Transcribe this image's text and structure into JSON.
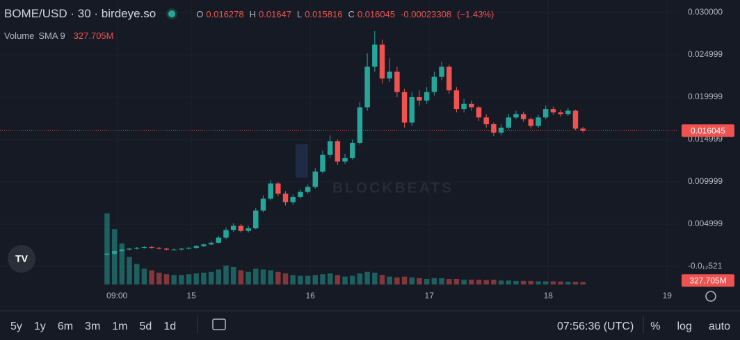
{
  "chart_data": {
    "type": "candlestick",
    "title": "BOME/USD · 30 · birdeye.so",
    "ohlc_labels": [
      "O",
      "H",
      "L",
      "C"
    ],
    "change": -0.00023308,
    "change_pct": -1.43,
    "change_pct_label": "(−1.43%)",
    "volume_name": "Volume",
    "volume_sma_label": "SMA 9",
    "volume_label": "327.705M",
    "watermark": "BLOCKBEATS",
    "up_color": "#26a69a",
    "down_color": "#ef5350",
    "grid": true,
    "x": [
      7,
      8.5,
      10,
      11.5,
      13,
      14.5,
      16,
      17.5,
      19,
      20.5,
      22,
      23.5,
      25,
      26.5,
      28,
      29.5,
      31,
      32.5,
      34,
      35.5,
      37,
      38.5,
      40,
      41.5,
      43,
      44.5,
      46,
      47.5,
      49,
      50.5,
      52,
      53.5,
      55,
      56.5,
      58,
      59.5,
      61,
      62.5,
      64,
      65.5,
      67,
      68.5,
      70,
      71.5,
      73,
      74.5,
      76,
      77.5,
      79,
      80.5,
      82,
      83.5,
      85,
      86.5,
      88,
      89.5,
      91,
      92.5,
      94,
      95.5,
      97,
      98.5,
      100,
      101.5,
      103
    ],
    "open": [
      0.0014,
      0.0015,
      0.0018,
      0.002,
      0.0021,
      0.0022,
      0.0023,
      0.0022,
      0.0021,
      0.002,
      0.002,
      0.0021,
      0.0022,
      0.0024,
      0.0026,
      0.0028,
      0.0034,
      0.0043,
      0.0048,
      0.0042,
      0.0045,
      0.0066,
      0.008,
      0.0098,
      0.0086,
      0.0076,
      0.0082,
      0.0088,
      0.0094,
      0.0112,
      0.0132,
      0.0148,
      0.0124,
      0.0128,
      0.0146,
      0.0188,
      0.0236,
      0.0262,
      0.0222,
      0.023,
      0.0206,
      0.017,
      0.02,
      0.0196,
      0.0206,
      0.0224,
      0.0236,
      0.0208,
      0.0186,
      0.0192,
      0.0188,
      0.0176,
      0.0168,
      0.0158,
      0.0164,
      0.0176,
      0.018,
      0.0174,
      0.0166,
      0.0176,
      0.0186,
      0.0182,
      0.018,
      0.0184,
      0.016278
    ],
    "high": [
      0.0016,
      0.0019,
      0.0021,
      0.0022,
      0.0023,
      0.0024,
      0.0024,
      0.0023,
      0.0022,
      0.0021,
      0.0022,
      0.0023,
      0.0025,
      0.0027,
      0.003,
      0.0036,
      0.0046,
      0.0051,
      0.005,
      0.0048,
      0.0069,
      0.0084,
      0.0102,
      0.01,
      0.0089,
      0.0085,
      0.0091,
      0.0097,
      0.0116,
      0.0137,
      0.0155,
      0.015,
      0.0133,
      0.015,
      0.0194,
      0.0252,
      0.0278,
      0.0268,
      0.0246,
      0.0236,
      0.021,
      0.0206,
      0.0208,
      0.0212,
      0.023,
      0.0242,
      0.0238,
      0.0212,
      0.0198,
      0.0196,
      0.019,
      0.018,
      0.017,
      0.0168,
      0.018,
      0.0184,
      0.0183,
      0.0176,
      0.0179,
      0.019,
      0.0189,
      0.0185,
      0.0187,
      0.0185,
      0.01647
    ],
    "low": [
      0.0013,
      0.0014,
      0.0017,
      0.0019,
      0.002,
      0.0021,
      0.0021,
      0.002,
      0.0019,
      0.0019,
      0.0019,
      0.002,
      0.0021,
      0.0023,
      0.0025,
      0.0027,
      0.0032,
      0.0041,
      0.004,
      0.004,
      0.0044,
      0.0064,
      0.0078,
      0.0083,
      0.0072,
      0.0073,
      0.008,
      0.0086,
      0.0092,
      0.011,
      0.0128,
      0.012,
      0.0121,
      0.0126,
      0.0144,
      0.0184,
      0.023,
      0.0216,
      0.0218,
      0.02,
      0.0164,
      0.0166,
      0.019,
      0.0192,
      0.0202,
      0.022,
      0.0204,
      0.0182,
      0.0182,
      0.0184,
      0.0172,
      0.0164,
      0.0154,
      0.0155,
      0.0162,
      0.0174,
      0.0171,
      0.0163,
      0.0164,
      0.0174,
      0.0179,
      0.0177,
      0.0178,
      0.0161,
      0.015816
    ],
    "close": [
      0.0015,
      0.0018,
      0.002,
      0.0021,
      0.0022,
      0.0023,
      0.0022,
      0.0021,
      0.002,
      0.002,
      0.0021,
      0.0022,
      0.0024,
      0.0026,
      0.0028,
      0.0034,
      0.0043,
      0.0048,
      0.0042,
      0.0045,
      0.0066,
      0.008,
      0.0098,
      0.0086,
      0.0076,
      0.0082,
      0.0088,
      0.0094,
      0.0112,
      0.0132,
      0.0148,
      0.0124,
      0.0128,
      0.0146,
      0.0188,
      0.0236,
      0.0262,
      0.0222,
      0.023,
      0.0206,
      0.017,
      0.02,
      0.0196,
      0.0206,
      0.0224,
      0.0236,
      0.0208,
      0.0186,
      0.0192,
      0.0188,
      0.0176,
      0.0168,
      0.0158,
      0.0164,
      0.0176,
      0.018,
      0.0174,
      0.0166,
      0.0176,
      0.0186,
      0.0182,
      0.018,
      0.0184,
      0.016278,
      0.016045
    ],
    "volume": [
      9000,
      7000,
      5200,
      3500,
      2600,
      2000,
      1800,
      1500,
      1300,
      1200,
      1200,
      1300,
      1400,
      1500,
      1600,
      1900,
      2400,
      2200,
      1800,
      1600,
      2000,
      1900,
      1800,
      1600,
      1400,
      1200,
      1100,
      1100,
      1200,
      1300,
      1400,
      1200,
      1000,
      1100,
      1400,
      1600,
      1500,
      1200,
      1000,
      900,
      1000,
      900,
      800,
      700,
      800,
      800,
      700,
      700,
      600,
      600,
      600,
      550,
      600,
      500,
      500,
      450,
      450,
      450,
      400,
      400,
      400,
      380,
      360,
      350,
      327.705
    ],
    "vlim": [
      0,
      36000
    ],
    "xlim": [
      -14.6,
      122.2
    ],
    "xticks": [
      {
        "value": 9,
        "label": "09:00"
      },
      {
        "value": 24,
        "label": "15"
      },
      {
        "value": 48,
        "label": "16"
      },
      {
        "value": 72,
        "label": "17"
      },
      {
        "value": 96,
        "label": "18"
      },
      {
        "value": 120,
        "label": "19"
      }
    ],
    "ylim": [
      -0.00213,
      0.031475
    ],
    "yticks": [
      {
        "value": -5.21e-15,
        "label": "-0.0₁₂521"
      },
      {
        "value": 0.004999,
        "label": "0.004999"
      },
      {
        "value": 0.009999,
        "label": "0.009999"
      },
      {
        "value": 0.014999,
        "label": "0.014999"
      },
      {
        "value": 0.019999,
        "label": "0.019999"
      },
      {
        "value": 0.024999,
        "label": "0.024999"
      },
      {
        "value": 0.03,
        "label": "0.030000"
      }
    ],
    "timeframes": [
      "5y",
      "1y",
      "6m",
      "3m",
      "1m",
      "5d",
      "1d"
    ],
    "clock": "07:56:36 (UTC)",
    "scale_options": [
      "%",
      "log",
      "auto"
    ]
  }
}
